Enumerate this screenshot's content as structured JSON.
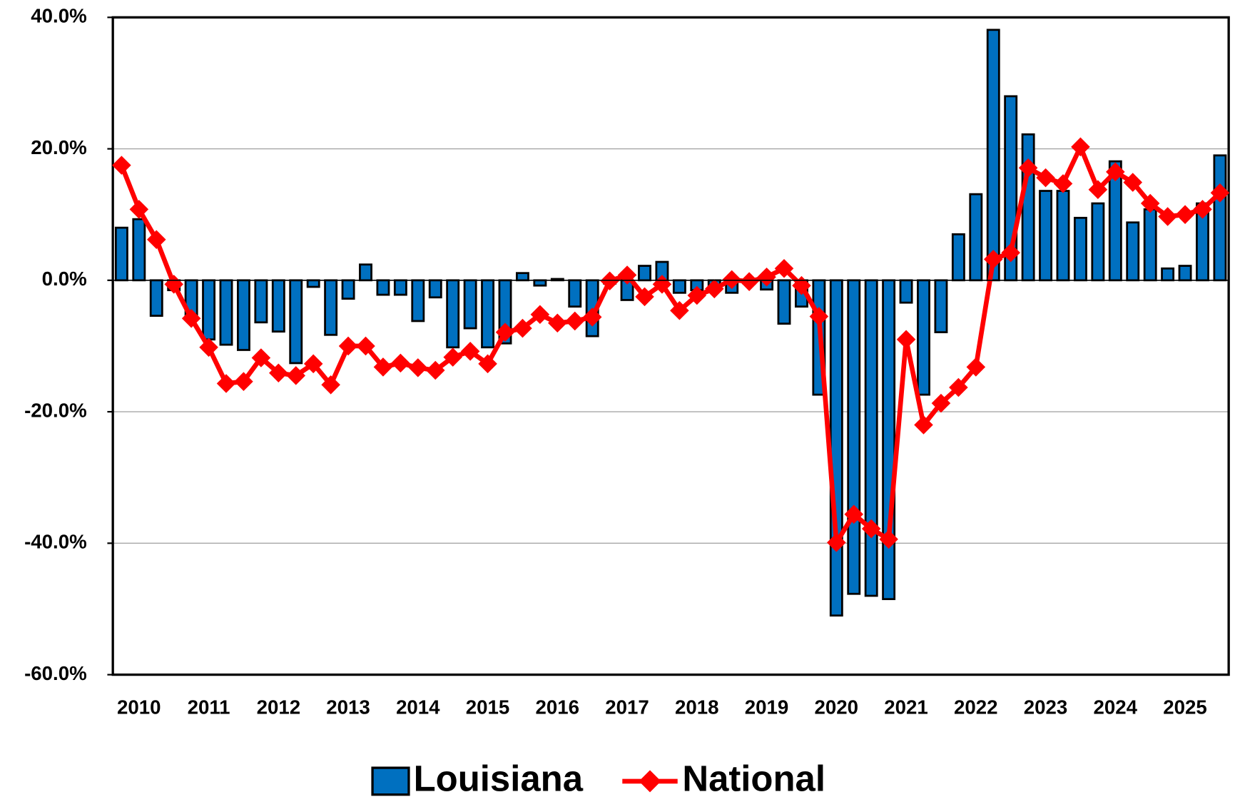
{
  "chart_data": {
    "type": "bar_line",
    "categories": [
      null,
      "2010",
      null,
      null,
      null,
      "2011",
      null,
      null,
      null,
      "2012",
      null,
      null,
      null,
      "2013",
      null,
      null,
      null,
      "2014",
      null,
      null,
      null,
      "2015",
      null,
      null,
      null,
      "2016",
      null,
      null,
      null,
      "2017",
      null,
      null,
      null,
      "2018",
      null,
      null,
      null,
      "2019",
      null,
      null,
      null,
      "2020",
      null,
      null,
      null,
      "2021",
      null,
      null,
      null,
      "2022",
      null,
      null,
      null,
      "2023",
      null,
      null,
      null,
      "2024",
      null,
      null,
      null,
      "2025",
      null,
      null
    ],
    "series": [
      {
        "name": "Louisiana",
        "type": "bar",
        "color": "#0070c0",
        "values": [
          8.0,
          9.3,
          -5.4,
          -1.5,
          -6.0,
          -9.0,
          -9.8,
          -10.6,
          -6.4,
          -7.8,
          -12.6,
          -1.0,
          -8.3,
          -2.8,
          2.4,
          -2.2,
          -2.2,
          -6.2,
          -2.6,
          -10.2,
          -7.3,
          -10.2,
          -9.6,
          1.1,
          -0.8,
          0.2,
          -4.0,
          -8.5,
          -0.5,
          -3.0,
          2.2,
          2.8,
          -1.9,
          -1.5,
          -1.0,
          -1.9,
          -0.5,
          -1.4,
          -6.6,
          -4.0,
          -17.4,
          -51.0,
          -47.7,
          -48.0,
          -48.5,
          -3.4,
          -17.4,
          -7.9,
          7.0,
          13.1,
          38.1,
          28.0,
          22.2,
          13.6,
          13.6,
          9.5,
          11.7,
          18.1,
          8.8,
          10.8,
          1.8,
          2.2,
          11.7,
          19.0
        ]
      },
      {
        "name": "National",
        "type": "line",
        "color": "#ff0000",
        "values": [
          17.5,
          10.8,
          6.2,
          -0.6,
          -5.8,
          -10.2,
          -15.7,
          -15.4,
          -11.8,
          -14.1,
          -14.5,
          -12.7,
          -15.9,
          -10.0,
          -10.0,
          -13.2,
          -12.6,
          -13.3,
          -13.7,
          -11.7,
          -10.8,
          -12.7,
          -7.9,
          -7.3,
          -5.2,
          -6.5,
          -6.2,
          -5.6,
          -0.1,
          0.8,
          -2.5,
          -0.6,
          -4.6,
          -2.3,
          -1.3,
          0.1,
          -0.2,
          0.5,
          1.8,
          -0.8,
          -5.5,
          -39.9,
          -35.6,
          -37.8,
          -39.4,
          -9.0,
          -22.0,
          -18.7,
          -16.3,
          -13.2,
          3.2,
          4.2,
          17.1,
          15.6,
          14.7,
          20.3,
          13.8,
          16.5,
          14.9,
          11.7,
          9.7,
          10.0,
          10.8,
          13.3
        ]
      }
    ],
    "ylim": [
      -60,
      40
    ],
    "yticks": [
      {
        "value": -60,
        "label": "-60.0%"
      },
      {
        "value": -40,
        "label": "-40.0%"
      },
      {
        "value": -20,
        "label": "-20.0%"
      },
      {
        "value": 0,
        "label": "0.0%"
      },
      {
        "value": 20,
        "label": "20.0%"
      },
      {
        "value": 40,
        "label": "40.0%"
      }
    ],
    "grid": true,
    "legend": "bottom"
  }
}
